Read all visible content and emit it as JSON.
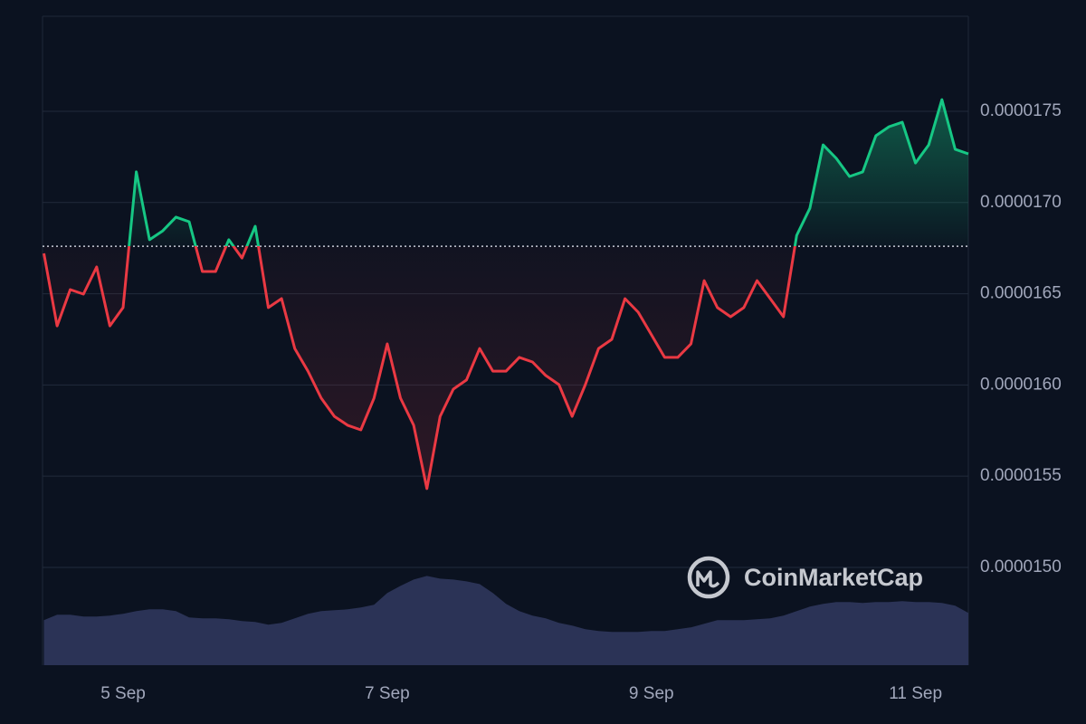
{
  "chart_data": {
    "type": "line",
    "watermark": "CoinMarketCap",
    "x": [
      4.4,
      4.5,
      4.6,
      4.7,
      4.8,
      4.9,
      5.0,
      5.1,
      5.2,
      5.3,
      5.4,
      5.5,
      5.6,
      5.7,
      5.8,
      5.9,
      6.0,
      6.1,
      6.2,
      6.3,
      6.4,
      6.5,
      6.6,
      6.7,
      6.8,
      6.9,
      7.0,
      7.1,
      7.2,
      7.3,
      7.4,
      7.5,
      7.6,
      7.7,
      7.8,
      7.9,
      8.0,
      8.1,
      8.2,
      8.3,
      8.4,
      8.5,
      8.6,
      8.7,
      8.8,
      8.9,
      9.0,
      9.1,
      9.2,
      9.3,
      9.4,
      9.5,
      9.6,
      9.7,
      9.8,
      9.9,
      10.0,
      10.1,
      10.2,
      10.3,
      10.4,
      10.5,
      10.6,
      10.7,
      10.8,
      10.9,
      11.0,
      11.1,
      11.2,
      11.3,
      11.4
    ],
    "series": [
      {
        "color_up": "#16c784",
        "color_down": "#ea3943",
        "values": [
          1.6721e-05,
          1.6324e-05,
          1.6523e-05,
          1.6498e-05,
          1.6647e-05,
          1.6324e-05,
          1.6424e-05,
          1.7168e-05,
          1.6796e-05,
          1.6845e-05,
          1.692e-05,
          1.6895e-05,
          1.6622e-05,
          1.6622e-05,
          1.6796e-05,
          1.6696e-05,
          1.687e-05,
          1.6424e-05,
          1.6473e-05,
          1.62e-05,
          1.6076e-05,
          1.5928e-05,
          1.5828e-05,
          1.5779e-05,
          1.5754e-05,
          1.5928e-05,
          1.6225e-05,
          1.5928e-05,
          1.5779e-05,
          1.5432e-05,
          1.5828e-05,
          1.5977e-05,
          1.6027e-05,
          1.62e-05,
          1.6076e-05,
          1.6076e-05,
          1.6151e-05,
          1.6126e-05,
          1.6052e-05,
          1.6002e-05,
          1.5828e-05,
          1.6002e-05,
          1.62e-05,
          1.625e-05,
          1.6473e-05,
          1.6399e-05,
          1.6275e-05,
          1.6151e-05,
          1.6151e-05,
          1.6225e-05,
          1.6572e-05,
          1.6424e-05,
          1.6374e-05,
          1.6424e-05,
          1.6572e-05,
          1.6473e-05,
          1.6374e-05,
          1.682e-05,
          1.6969e-05,
          1.7316e-05,
          1.7242e-05,
          1.7143e-05,
          1.7168e-05,
          1.7366e-05,
          1.7416e-05,
          1.744e-05,
          1.7217e-05,
          1.7316e-05,
          1.7564e-05,
          1.7292e-05,
          1.7267e-05
        ]
      }
    ],
    "volume": {
      "color": "#2b3356",
      "axis": "y2",
      "values": [
        50,
        56,
        56,
        54,
        54,
        55,
        57,
        60,
        62,
        62,
        60,
        53,
        52,
        52,
        51,
        49,
        48,
        45,
        47,
        52,
        57,
        60,
        61,
        62,
        64,
        67,
        80,
        88,
        95,
        99,
        96,
        95,
        93,
        90,
        80,
        68,
        60,
        55,
        52,
        47,
        44,
        40,
        38,
        37,
        37,
        37,
        38,
        38,
        40,
        42,
        46,
        50,
        50,
        50,
        51,
        52,
        55,
        60,
        65,
        68,
        70,
        70,
        69,
        70,
        70,
        71,
        70,
        70,
        69,
        66,
        58
      ]
    },
    "baseline": 1.676e-05,
    "xlim": [
      4.39,
      11.4
    ],
    "xticks": [
      {
        "value": 5,
        "label": "5 Sep"
      },
      {
        "value": 7,
        "label": "7 Sep"
      },
      {
        "value": 9,
        "label": "9 Sep"
      },
      {
        "value": 11,
        "label": "11 Sep"
      }
    ],
    "ylim": [
      1.4464e-05,
      1.8021e-05
    ],
    "yticks": [
      {
        "value": 1.5e-05,
        "label": "0.0000150"
      },
      1.55e-05,
      {
        "value": 1.6e-05,
        "label": "0.0000160"
      },
      1.65e-05,
      {
        "value": 1.7e-05,
        "label": "0.0000170"
      },
      1.75e-05
    ],
    "y2lim": [
      0,
      720
    ],
    "grid": true
  }
}
